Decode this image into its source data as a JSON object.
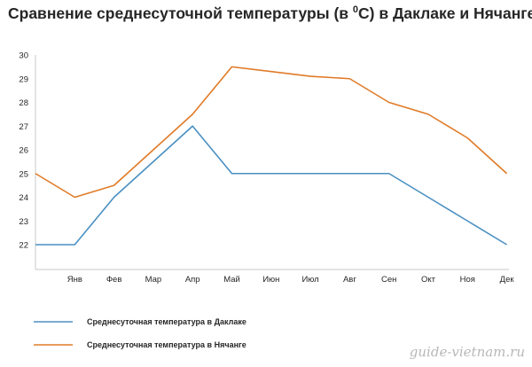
{
  "chart_data": {
    "type": "line",
    "title_prefix": "Сравнение среднесуточной температуры (в ",
    "title_degree": "0",
    "title_suffix": "C) в Даклаке и Нячанге",
    "categories": [
      "Янв",
      "Фев",
      "Мар",
      "Апр",
      "Май",
      "Июн",
      "Июл",
      "Авг",
      "Сен",
      "Окт",
      "Ноя",
      "Дек"
    ],
    "x_start_value_note": "",
    "y_ticks": [
      22,
      23,
      24,
      25,
      26,
      27,
      28,
      29,
      30
    ],
    "ylim": [
      22,
      30
    ],
    "grid": false,
    "legend_position": "bottom-left",
    "series": [
      {
        "name": "Среднесуточная температура в Даклаке",
        "color": "#4a90c2",
        "start": 22,
        "values": [
          22,
          24,
          25.5,
          27,
          25,
          25,
          25,
          25,
          25,
          24,
          23,
          22
        ]
      },
      {
        "name": "Среднесуточная температура в Нячанге",
        "color": "#e07b28",
        "start": 25,
        "values": [
          24,
          24.5,
          26,
          27.5,
          29.5,
          29.3,
          29.1,
          29,
          28,
          27.5,
          26.5,
          25
        ]
      }
    ]
  },
  "watermark": "guide-vietnam.ru"
}
